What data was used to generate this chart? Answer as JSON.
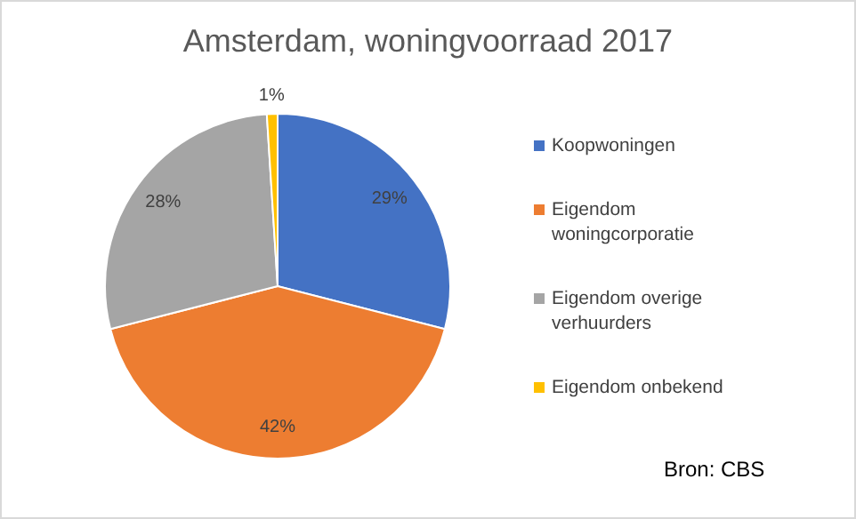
{
  "chart_data": {
    "type": "pie",
    "title": "Amsterdam, woningvoorraad 2017",
    "categories": [
      "Koopwoningen",
      "Eigendom woningcorporatie",
      "Eigendom overige verhuurders",
      "Eigendom onbekend"
    ],
    "values": [
      29,
      42,
      28,
      1
    ],
    "colors": [
      "#4472c4",
      "#ed7d31",
      "#a5a5a5",
      "#ffc000"
    ],
    "value_labels": [
      "29%",
      "42%",
      "28%",
      "1%"
    ],
    "legend": "right",
    "annotations": [
      "Bron: CBS"
    ]
  }
}
